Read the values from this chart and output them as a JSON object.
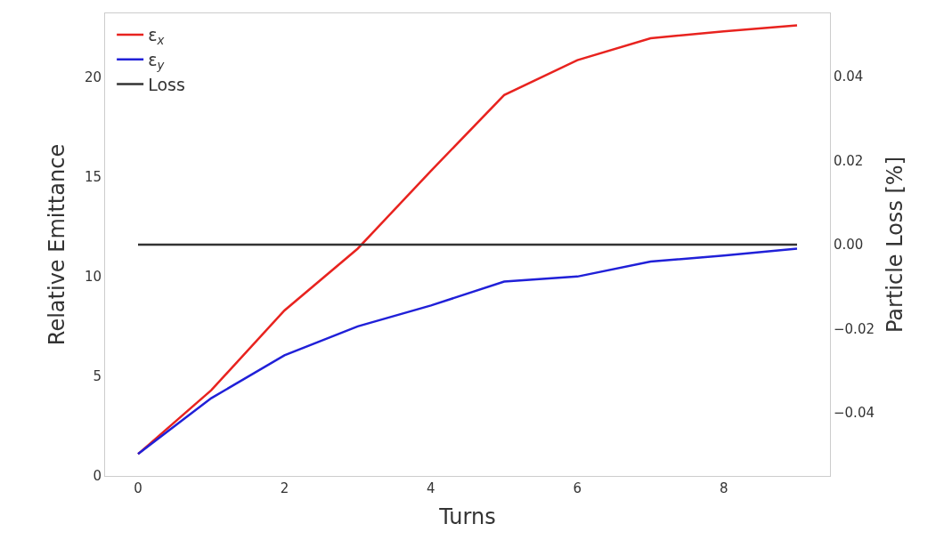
{
  "chart_data": {
    "type": "line",
    "xlabel": "Turns",
    "ylabel": "Relative Emittance",
    "y2label": "Particle Loss [%]",
    "x": [
      0,
      1,
      2,
      3,
      4,
      5,
      6,
      7,
      8,
      9
    ],
    "series": [
      {
        "name": "ε$_{x}$",
        "color": "#e8231f",
        "values": [
          1.1,
          4.3,
          8.3,
          11.4,
          15.3,
          19.1,
          20.85,
          21.95,
          22.3,
          22.6
        ]
      },
      {
        "name": "ε$_{y}$",
        "color": "#2020d8",
        "values": [
          1.1,
          3.9,
          6.05,
          7.5,
          8.55,
          9.75,
          10.0,
          10.75,
          11.05,
          11.4
        ]
      },
      {
        "name": "Loss",
        "color": "#333333",
        "axis": "y2",
        "values": [
          0,
          0,
          0,
          0,
          0,
          0,
          0,
          0,
          0,
          0
        ]
      }
    ],
    "xlim": [
      -0.45,
      9.45
    ],
    "xticks": [
      0,
      2,
      4,
      6,
      8
    ],
    "ylim": [
      0,
      23.2
    ],
    "yticks": [
      0,
      5,
      10,
      15,
      20
    ],
    "y2lim": [
      -0.055,
      0.055
    ],
    "y2ticks": [
      {
        "value": -0.04,
        "label": "−0.04"
      },
      {
        "value": -0.02,
        "label": "−0.02"
      },
      {
        "value": 0,
        "label": "0.00"
      },
      {
        "value": 0.02,
        "label": "0.02"
      },
      {
        "value": 0.04,
        "label": "0.04"
      }
    ],
    "legend": "top left",
    "marker": "none",
    "line_style": "solid"
  }
}
